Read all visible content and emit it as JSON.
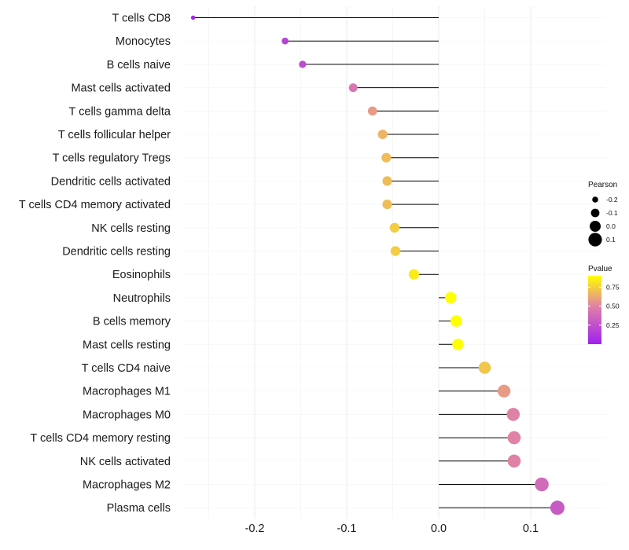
{
  "chart_data": {
    "type": "lollipop",
    "categories": [
      "T cells CD8",
      "Monocytes",
      "B cells naive",
      "Mast cells activated",
      "T cells gamma delta",
      "T cells follicular helper",
      "T cells regulatory  Tregs ",
      "Dendritic cells activated",
      "T cells CD4 memory activated",
      "NK cells resting",
      "Dendritic cells resting",
      "Eosinophils",
      "Neutrophils",
      "B cells memory",
      "Mast cells resting",
      "T cells CD4 naive",
      "Macrophages M1",
      "Macrophages M0",
      "T cells CD4 memory resting",
      "NK cells activated",
      "Macrophages M2",
      "Plasma cells"
    ],
    "pearson": [
      -0.267,
      -0.167,
      -0.148,
      -0.093,
      -0.072,
      -0.061,
      -0.057,
      -0.056,
      -0.056,
      -0.048,
      -0.047,
      -0.027,
      0.013,
      0.019,
      0.021,
      0.05,
      0.071,
      0.081,
      0.082,
      0.082,
      0.112,
      0.129
    ],
    "pvalue": [
      0.03,
      0.18,
      0.22,
      0.44,
      0.58,
      0.66,
      0.69,
      0.69,
      0.69,
      0.74,
      0.74,
      0.84,
      0.94,
      0.92,
      0.92,
      0.72,
      0.58,
      0.5,
      0.5,
      0.5,
      0.38,
      0.3
    ],
    "xlim": [
      -0.275,
      0.14
    ],
    "xticks": [
      -0.2,
      -0.1,
      0.0,
      0.1
    ],
    "xtick_labels": [
      "-0.2",
      "-0.1",
      "0.0",
      "0.1"
    ],
    "title": "",
    "xlabel": "",
    "ylabel": "",
    "grid": true,
    "legend_placement": "right",
    "legend_size": {
      "title": "Pearson",
      "values": [
        -0.2,
        -0.1,
        0.0,
        0.1
      ],
      "labels": [
        "-0.2",
        "-0.1",
        "0.0",
        "0.1"
      ]
    },
    "legend_color": {
      "title": "Pvalue",
      "range": [
        0.0,
        0.9
      ],
      "ticks": [
        0.25,
        0.5,
        0.75
      ],
      "tick_labels": [
        "0.25",
        "0.50",
        "0.75"
      ],
      "low_color": "#a020f0",
      "mid_color": "#e080a8",
      "high_color": "#ffff00"
    },
    "colors": {
      "stem": "#000000",
      "grid": "#ebebeb",
      "legend_dot": "#000000"
    }
  }
}
